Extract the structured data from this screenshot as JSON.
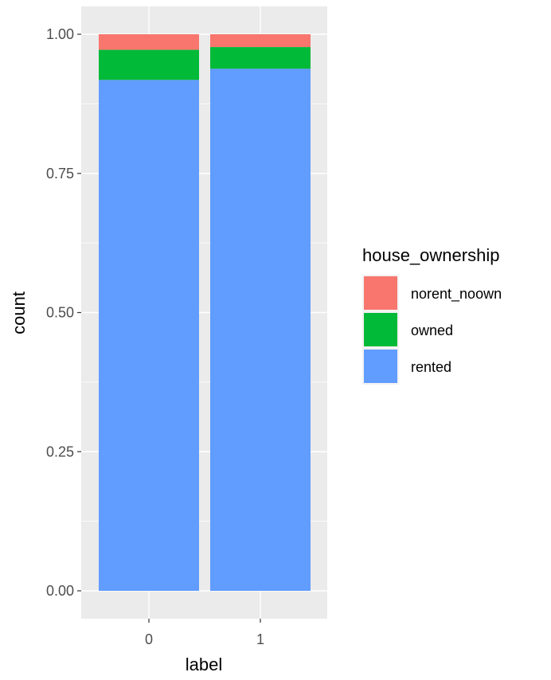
{
  "chart_data": {
    "type": "bar",
    "stacked": true,
    "categories": [
      "0",
      "1"
    ],
    "series": [
      {
        "name": "rented",
        "values": [
          0.918,
          0.938
        ],
        "color": "#619CFF"
      },
      {
        "name": "owned",
        "values": [
          0.054,
          0.039
        ],
        "color": "#00BA38"
      },
      {
        "name": "norent_noown",
        "values": [
          0.028,
          0.023
        ],
        "color": "#F8766D"
      }
    ],
    "xlabel": "label",
    "ylabel": "count",
    "ylim": [
      0,
      1
    ],
    "yticks": [
      "0.00",
      "0.25",
      "0.50",
      "0.75",
      "1.00"
    ],
    "ytick_values": [
      0,
      0.25,
      0.5,
      0.75,
      1.0
    ],
    "legend": {
      "title": "house_ownership",
      "entries": [
        "norent_noown",
        "owned",
        "rented"
      ],
      "placement": "right"
    },
    "panel_background": "#EBEBEB",
    "grid": true
  }
}
